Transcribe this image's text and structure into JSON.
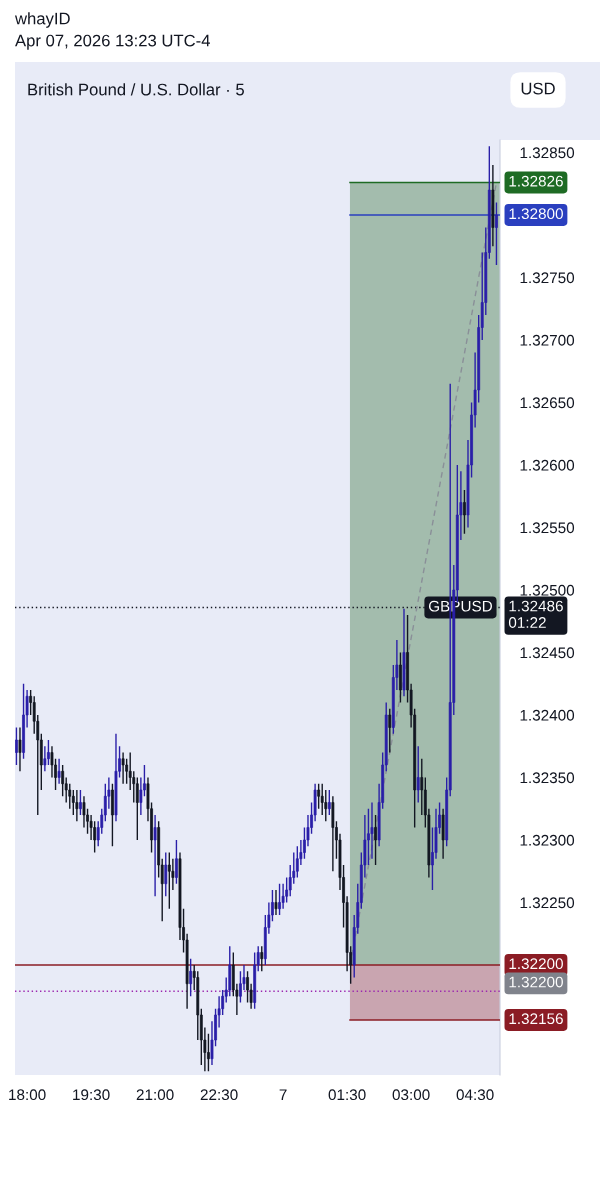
{
  "chart_data": {
    "type": "candlestick",
    "title": "British Pound / U.S. Dollar · 5",
    "subtitle": "Apr 07, 2026 13:23 UTC-4",
    "annotations": [
      "whayID",
      "USD",
      "GBPUSD",
      "1.32200"
    ],
    "colors": [
      "#2a1fa8",
      "#131722",
      "#2a1fa8",
      "#2a1fa8",
      "#131722",
      "#131722",
      "#131722",
      "#131722",
      "#2a1fa8",
      "#2a1fa8",
      "#131722",
      "#131722",
      "#2a1fa8",
      "#131722",
      "#131722",
      "#131722",
      "#131722",
      "#131722",
      "#2a1fa8",
      "#131722",
      "#131722",
      "#131722",
      "#131722",
      "#2a1fa8",
      "#2a1fa8",
      "#2a1fa8",
      "#2a1fa8",
      "#131722",
      "#2a1fa8",
      "#2a1fa8",
      "#131722",
      "#131722",
      "#131722",
      "#131722",
      "#131722",
      "#2a1fa8",
      "#2a1fa8",
      "#131722",
      "#131722",
      "#2a1fa8",
      "#131722",
      "#131722",
      "#2a1fa8",
      "#131722",
      "#131722",
      "#2a1fa8",
      "#131722",
      "#131722",
      "#131722",
      "#2a1fa8",
      "#131722",
      "#131722",
      "#131722",
      "#131722",
      "#131722",
      "#2a1fa8",
      "#2a1fa8",
      "#2a1fa8",
      "#2a1fa8",
      "#2a1fa8",
      "#2a1fa8",
      "#131722",
      "#131722",
      "#2a1fa8",
      "#2a1fa8",
      "#131722",
      "#131722",
      "#2a1fa8",
      "#2a1fa8",
      "#131722",
      "#2a1fa8",
      "#2a1fa8",
      "#2a1fa8",
      "#131722",
      "#2a1fa8",
      "#2a1fa8",
      "#2a1fa8",
      "#2a1fa8",
      "#2a1fa8",
      "#2a1fa8",
      "#2a1fa8",
      "#2a1fa8",
      "#2a1fa8",
      "#2a1fa8",
      "#2a1fa8",
      "#131722",
      "#131722",
      "#131722",
      "#2a1fa8",
      "#131722",
      "#131722",
      "#131722",
      "#131722",
      "#131722",
      "#131722",
      "#2a1fa8",
      "#2a1fa8",
      "#2a1fa8",
      "#2a1fa8",
      "#2a1fa8",
      "#2a1fa8",
      "#131722",
      "#2a1fa8",
      "#2a1fa8",
      "#2a1fa8",
      "#131722",
      "#2a1fa8",
      "#2a1fa8",
      "#131722",
      "#2a1fa8",
      "#131722",
      "#131722",
      "#131722",
      "#2a1fa8",
      "#131722",
      "#131722",
      "#131722",
      "#2a1fa8",
      "#2a1fa8",
      "#2a1fa8",
      "#131722",
      "#2a1fa8",
      "#2a1fa8",
      "#2a1fa8",
      "#2a1fa8",
      "#2a1fa8",
      "#131722",
      "#2a1fa8",
      "#2a1fa8",
      "#2a1fa8",
      "#2a1fa8",
      "#2a1fa8",
      "#2a1fa8",
      "#2a1fa8",
      "#131722",
      "#2a1fa8"
    ],
    "x": [
      "2026-04-06T17:45",
      "2026-04-06T17:50",
      "2026-04-06T17:55",
      "2026-04-06T18:00",
      "2026-04-06T18:05",
      "2026-04-06T18:10",
      "2026-04-06T18:15",
      "2026-04-06T18:20",
      "2026-04-06T18:25",
      "2026-04-06T18:30",
      "2026-04-06T18:35",
      "2026-04-06T18:40",
      "2026-04-06T18:45",
      "2026-04-06T18:50",
      "2026-04-06T18:55",
      "2026-04-06T19:00",
      "2026-04-06T19:05",
      "2026-04-06T19:10",
      "2026-04-06T19:15",
      "2026-04-06T19:20",
      "2026-04-06T19:25",
      "2026-04-06T19:30",
      "2026-04-06T19:35",
      "2026-04-06T19:40",
      "2026-04-06T19:45",
      "2026-04-06T19:50",
      "2026-04-06T19:55",
      "2026-04-06T20:00",
      "2026-04-06T20:05",
      "2026-04-06T20:10",
      "2026-04-06T20:15",
      "2026-04-06T20:20",
      "2026-04-06T20:25",
      "2026-04-06T20:30",
      "2026-04-06T20:35",
      "2026-04-06T20:40",
      "2026-04-06T20:45",
      "2026-04-06T20:50",
      "2026-04-06T20:55",
      "2026-04-06T21:00",
      "2026-04-06T21:05",
      "2026-04-06T21:10",
      "2026-04-06T21:15",
      "2026-04-06T21:20",
      "2026-04-06T21:25",
      "2026-04-06T21:30",
      "2026-04-06T21:35",
      "2026-04-06T21:40",
      "2026-04-06T21:45",
      "2026-04-06T21:50",
      "2026-04-06T21:55",
      "2026-04-06T22:00",
      "2026-04-06T22:05",
      "2026-04-06T22:10",
      "2026-04-06T22:15",
      "2026-04-06T22:20",
      "2026-04-06T22:25",
      "2026-04-06T22:30",
      "2026-04-06T22:35",
      "2026-04-06T22:40",
      "2026-04-06T22:45",
      "2026-04-06T22:50",
      "2026-04-06T22:55",
      "2026-04-06T23:00",
      "2026-04-06T23:05",
      "2026-04-06T23:10",
      "2026-04-06T23:15",
      "2026-04-06T23:20",
      "2026-04-06T23:25",
      "2026-04-06T23:30",
      "2026-04-06T23:35",
      "2026-04-06T23:40",
      "2026-04-06T23:45",
      "2026-04-06T23:50",
      "2026-04-06T23:55",
      "2026-04-07T00:00",
      "2026-04-07T00:05",
      "2026-04-07T00:10",
      "2026-04-07T00:15",
      "2026-04-07T00:20",
      "2026-04-07T00:25",
      "2026-04-07T00:30",
      "2026-04-07T00:35",
      "2026-04-07T00:40",
      "2026-04-07T00:45",
      "2026-04-07T00:50",
      "2026-04-07T00:55",
      "2026-04-07T01:00",
      "2026-04-07T01:05",
      "2026-04-07T01:10",
      "2026-04-07T01:15",
      "2026-04-07T01:20",
      "2026-04-07T01:25",
      "2026-04-07T01:30",
      "2026-04-07T01:35",
      "2026-04-07T01:40",
      "2026-04-07T01:45",
      "2026-04-07T01:50",
      "2026-04-07T01:55",
      "2026-04-07T02:00",
      "2026-04-07T02:05",
      "2026-04-07T02:10",
      "2026-04-07T02:15",
      "2026-04-07T02:20",
      "2026-04-07T02:25",
      "2026-04-07T02:30",
      "2026-04-07T02:35",
      "2026-04-07T02:40",
      "2026-04-07T02:45",
      "2026-04-07T02:50",
      "2026-04-07T02:55",
      "2026-04-07T03:00",
      "2026-04-07T03:05",
      "2026-04-07T03:10",
      "2026-04-07T03:15",
      "2026-04-07T03:20",
      "2026-04-07T03:25",
      "2026-04-07T03:30",
      "2026-04-07T03:35",
      "2026-04-07T03:40",
      "2026-04-07T03:45",
      "2026-04-07T03:50",
      "2026-04-07T03:55",
      "2026-04-07T04:00",
      "2026-04-07T04:05",
      "2026-04-07T04:10",
      "2026-04-07T04:15",
      "2026-04-07T04:20",
      "2026-04-07T04:25",
      "2026-04-07T04:30",
      "2026-04-07T04:35",
      "2026-04-07T04:40",
      "2026-04-07T04:45",
      "2026-04-07T04:50",
      "2026-04-07T04:55",
      "2026-04-07T05:00"
    ],
    "ohlc": [
      [
        1.3237,
        1.3239,
        1.3236,
        1.3238
      ],
      [
        1.3238,
        1.3239,
        1.32355,
        1.3237
      ],
      [
        1.3237,
        1.32425,
        1.32365,
        1.324
      ],
      [
        1.324,
        1.3242,
        1.3239,
        1.32415
      ],
      [
        1.32415,
        1.3242,
        1.324,
        1.3241
      ],
      [
        1.3241,
        1.32415,
        1.32385,
        1.32395
      ],
      [
        1.32395,
        1.324,
        1.3232,
        1.3238
      ],
      [
        1.3238,
        1.32385,
        1.3234,
        1.3236
      ],
      [
        1.3236,
        1.32375,
        1.32355,
        1.32365
      ],
      [
        1.32365,
        1.3238,
        1.3236,
        1.3237
      ],
      [
        1.3237,
        1.32375,
        1.3235,
        1.3236
      ],
      [
        1.3236,
        1.32365,
        1.3234,
        1.3235
      ],
      [
        1.3235,
        1.32365,
        1.32345,
        1.32355
      ],
      [
        1.32355,
        1.3236,
        1.32335,
        1.32345
      ],
      [
        1.32345,
        1.3235,
        1.3233,
        1.3234
      ],
      [
        1.3234,
        1.32345,
        1.32325,
        1.32335
      ],
      [
        1.32335,
        1.3234,
        1.3232,
        1.3233
      ],
      [
        1.3233,
        1.3234,
        1.32315,
        1.32325
      ],
      [
        1.32325,
        1.3234,
        1.3232,
        1.3233
      ],
      [
        1.3233,
        1.32335,
        1.3231,
        1.3232
      ],
      [
        1.3232,
        1.32325,
        1.32305,
        1.32315
      ],
      [
        1.32315,
        1.3232,
        1.323,
        1.3231
      ],
      [
        1.3231,
        1.32315,
        1.3229,
        1.323
      ],
      [
        1.323,
        1.32315,
        1.32295,
        1.3231
      ],
      [
        1.3231,
        1.32325,
        1.32305,
        1.3232
      ],
      [
        1.3232,
        1.32345,
        1.32315,
        1.32335
      ],
      [
        1.32335,
        1.3235,
        1.32325,
        1.3234
      ],
      [
        1.3234,
        1.32345,
        1.32295,
        1.3232
      ],
      [
        1.3232,
        1.32385,
        1.32315,
        1.32355
      ],
      [
        1.32355,
        1.32375,
        1.3235,
        1.32365
      ],
      [
        1.32365,
        1.3237,
        1.32345,
        1.3236
      ],
      [
        1.3236,
        1.32365,
        1.32345,
        1.32355
      ],
      [
        1.32355,
        1.3237,
        1.3234,
        1.3235
      ],
      [
        1.3235,
        1.32355,
        1.3233,
        1.32345
      ],
      [
        1.32345,
        1.3235,
        1.323,
        1.3233
      ],
      [
        1.3233,
        1.3235,
        1.3232,
        1.3234
      ],
      [
        1.3234,
        1.3236,
        1.32335,
        1.32345
      ],
      [
        1.32345,
        1.3235,
        1.32315,
        1.32325
      ],
      [
        1.32325,
        1.3233,
        1.3229,
        1.323
      ],
      [
        1.323,
        1.3232,
        1.32255,
        1.3231
      ],
      [
        1.3231,
        1.32315,
        1.3227,
        1.3228
      ],
      [
        1.3228,
        1.32285,
        1.32235,
        1.32265
      ],
      [
        1.32265,
        1.3229,
        1.32255,
        1.3228
      ],
      [
        1.3228,
        1.3229,
        1.32245,
        1.32275
      ],
      [
        1.32275,
        1.32285,
        1.3226,
        1.3227
      ],
      [
        1.3227,
        1.323,
        1.32265,
        1.32285
      ],
      [
        1.32285,
        1.3229,
        1.3222,
        1.3223
      ],
      [
        1.3223,
        1.32245,
        1.3221,
        1.3222
      ],
      [
        1.3222,
        1.32225,
        1.32165,
        1.32185
      ],
      [
        1.32185,
        1.32205,
        1.32175,
        1.32195
      ],
      [
        1.32195,
        1.322,
        1.3218,
        1.3219
      ],
      [
        1.3219,
        1.32195,
        1.3214,
        1.3216
      ],
      [
        1.3216,
        1.32165,
        1.3212,
        1.3214
      ],
      [
        1.3214,
        1.3215,
        1.32115,
        1.3213
      ],
      [
        1.3213,
        1.32145,
        1.32115,
        1.32125
      ],
      [
        1.32125,
        1.32155,
        1.3212,
        1.3214
      ],
      [
        1.3214,
        1.32165,
        1.32135,
        1.3216
      ],
      [
        1.3216,
        1.32175,
        1.3215,
        1.32165
      ],
      [
        1.32165,
        1.3218,
        1.3216,
        1.32175
      ],
      [
        1.32175,
        1.3219,
        1.3217,
        1.3218
      ],
      [
        1.3218,
        1.32215,
        1.32175,
        1.322
      ],
      [
        1.322,
        1.3221,
        1.32175,
        1.3218
      ],
      [
        1.3218,
        1.32185,
        1.3216,
        1.32175
      ],
      [
        1.32175,
        1.32195,
        1.3217,
        1.32185
      ],
      [
        1.32185,
        1.322,
        1.3218,
        1.3219
      ],
      [
        1.3219,
        1.32195,
        1.3217,
        1.3218
      ],
      [
        1.3218,
        1.32185,
        1.32165,
        1.3217
      ],
      [
        1.3217,
        1.3221,
        1.32165,
        1.322
      ],
      [
        1.322,
        1.32215,
        1.32195,
        1.3221
      ],
      [
        1.3221,
        1.32215,
        1.32195,
        1.32205
      ],
      [
        1.32205,
        1.3224,
        1.322,
        1.3223
      ],
      [
        1.3223,
        1.3225,
        1.32225,
        1.3224
      ],
      [
        1.3224,
        1.3226,
        1.32235,
        1.3225
      ],
      [
        1.3225,
        1.3226,
        1.3224,
        1.32245
      ],
      [
        1.32245,
        1.32265,
        1.3224,
        1.3225
      ],
      [
        1.3225,
        1.32265,
        1.32245,
        1.32255
      ],
      [
        1.32255,
        1.3227,
        1.3225,
        1.3226
      ],
      [
        1.3226,
        1.3228,
        1.32255,
        1.3227
      ],
      [
        1.3227,
        1.3229,
        1.32265,
        1.32275
      ],
      [
        1.32275,
        1.32295,
        1.3227,
        1.32285
      ],
      [
        1.32285,
        1.323,
        1.3228,
        1.3229
      ],
      [
        1.3229,
        1.3231,
        1.32285,
        1.323
      ],
      [
        1.323,
        1.3232,
        1.32295,
        1.3231
      ],
      [
        1.3231,
        1.3233,
        1.32305,
        1.3232
      ],
      [
        1.3232,
        1.32345,
        1.32315,
        1.3234
      ],
      [
        1.3234,
        1.32345,
        1.32325,
        1.32335
      ],
      [
        1.32335,
        1.32345,
        1.3232,
        1.3233
      ],
      [
        1.3233,
        1.3234,
        1.32315,
        1.32325
      ],
      [
        1.32325,
        1.3234,
        1.3232,
        1.3233
      ],
      [
        1.3233,
        1.32335,
        1.32275,
        1.3231
      ],
      [
        1.3231,
        1.32315,
        1.32285,
        1.323
      ],
      [
        1.323,
        1.32305,
        1.3226,
        1.3227
      ],
      [
        1.3227,
        1.3228,
        1.3223,
        1.3225
      ],
      [
        1.3225,
        1.32255,
        1.32195,
        1.3221
      ],
      [
        1.3221,
        1.32215,
        1.32185,
        1.322
      ],
      [
        1.322,
        1.3224,
        1.3219,
        1.3223
      ],
      [
        1.3223,
        1.32265,
        1.32225,
        1.3225
      ],
      [
        1.3225,
        1.3229,
        1.32245,
        1.3228
      ],
      [
        1.3228,
        1.3232,
        1.3227,
        1.323
      ],
      [
        1.323,
        1.32325,
        1.3228,
        1.32305
      ],
      [
        1.32305,
        1.3233,
        1.32285,
        1.3231
      ],
      [
        1.3231,
        1.3232,
        1.3228,
        1.323
      ],
      [
        1.323,
        1.32345,
        1.32295,
        1.3233
      ],
      [
        1.3233,
        1.3237,
        1.32325,
        1.3236
      ],
      [
        1.3236,
        1.3241,
        1.32355,
        1.324
      ],
      [
        1.324,
        1.32405,
        1.3237,
        1.3239
      ],
      [
        1.3239,
        1.3244,
        1.32385,
        1.3243
      ],
      [
        1.3243,
        1.3246,
        1.3242,
        1.3244
      ],
      [
        1.3244,
        1.3245,
        1.3241,
        1.3242
      ],
      [
        1.3242,
        1.32485,
        1.32415,
        1.3245
      ],
      [
        1.3245,
        1.3248,
        1.3241,
        1.3242
      ],
      [
        1.3242,
        1.32425,
        1.3239,
        1.324
      ],
      [
        1.324,
        1.32405,
        1.3231,
        1.3234
      ],
      [
        1.3234,
        1.32375,
        1.3233,
        1.3235
      ],
      [
        1.3235,
        1.32365,
        1.3232,
        1.3234
      ],
      [
        1.3234,
        1.3235,
        1.3231,
        1.3232
      ],
      [
        1.3232,
        1.32325,
        1.3227,
        1.3228
      ],
      [
        1.3228,
        1.3231,
        1.3226,
        1.3229
      ],
      [
        1.3229,
        1.32325,
        1.32285,
        1.3231
      ],
      [
        1.3231,
        1.3233,
        1.32305,
        1.3232
      ],
      [
        1.3232,
        1.32325,
        1.32285,
        1.323
      ],
      [
        1.323,
        1.3235,
        1.32295,
        1.3234
      ],
      [
        1.3234,
        1.32665,
        1.32335,
        1.3241
      ],
      [
        1.3241,
        1.3252,
        1.324,
        1.325
      ],
      [
        1.325,
        1.326,
        1.3249,
        1.3256
      ],
      [
        1.3256,
        1.32595,
        1.3254,
        1.3257
      ],
      [
        1.3257,
        1.3258,
        1.32545,
        1.3256
      ],
      [
        1.3256,
        1.3262,
        1.3255,
        1.326
      ],
      [
        1.326,
        1.3265,
        1.3259,
        1.3264
      ],
      [
        1.3264,
        1.3269,
        1.3263,
        1.3266
      ],
      [
        1.3266,
        1.3272,
        1.3265,
        1.3271
      ],
      [
        1.3271,
        1.3277,
        1.327,
        1.3273
      ],
      [
        1.3273,
        1.3279,
        1.3272,
        1.3277
      ],
      [
        1.3277,
        1.32855,
        1.32765,
        1.3282
      ],
      [
        1.3282,
        1.3284,
        1.32775,
        1.3279
      ],
      [
        1.3279,
        1.3281,
        1.3276,
        1.328
      ]
    ],
    "series": [
      {
        "type": "line",
        "x": [
          "2026-04-07T01:34",
          "2026-04-07T05:00"
        ],
        "values": [
          1.322,
          1.32826
        ],
        "color": "#8a8f98",
        "line_style": "dashed"
      }
    ],
    "bands": [
      {
        "axis": "y",
        "from": 1.322,
        "to": 1.32826,
        "color": "#a3bcad"
      },
      {
        "axis": "y",
        "from": 1.32156,
        "to": 1.322,
        "color": "#c9a5b0"
      }
    ],
    "ref_lines": [
      {
        "axis": "y",
        "value": 1.32826,
        "label": "1.32826",
        "color": "#1e6b24"
      },
      {
        "axis": "y",
        "value": 1.328,
        "label": "1.32800",
        "color": "#2a3fbf"
      },
      {
        "axis": "y",
        "value": 1.32486,
        "label": "1.32486\n01:22",
        "color": "#131722",
        "line_style": "dotted"
      },
      {
        "axis": "y",
        "value": 1.322,
        "label": "1.32200",
        "color": "#8b1c24",
        "line_style": "solid"
      },
      {
        "axis": "y",
        "value": 1.32156,
        "label": "1.32156",
        "color": "#8b1c24"
      },
      {
        "axis": "y",
        "value": 1.32179,
        "color": "#9c27b0",
        "line_style": "dotted"
      }
    ],
    "xlim": [
      "2026-04-06T17:43",
      "2026-04-07T05:05"
    ],
    "xticks": [
      {
        "value": "2026-04-06T18:00",
        "label": "18:00"
      },
      {
        "value": "2026-04-06T19:30",
        "label": "19:30"
      },
      {
        "value": "2026-04-06T21:00",
        "label": "21:00"
      },
      {
        "value": "2026-04-06T22:30",
        "label": "22:30"
      },
      {
        "value": "2026-04-07T00:00",
        "label": "7"
      },
      {
        "value": "2026-04-07T01:30",
        "label": "01:30"
      },
      {
        "value": "2026-04-07T03:00",
        "label": "03:00"
      },
      {
        "value": "2026-04-07T04:30",
        "label": "04:30"
      }
    ],
    "ylim": [
      1.32112,
      1.3286
    ],
    "yticks": [
      {
        "value": 1.3225,
        "label": "1.32250"
      },
      {
        "value": 1.323,
        "label": "1.32300"
      },
      {
        "value": 1.3235,
        "label": "1.32350"
      },
      {
        "value": 1.324,
        "label": "1.32400"
      },
      {
        "value": 1.3245,
        "label": "1.32450"
      },
      {
        "value": 1.325,
        "label": "1.32500"
      },
      {
        "value": 1.3255,
        "label": "1.32550"
      },
      {
        "value": 1.326,
        "label": "1.32600"
      },
      {
        "value": 1.3265,
        "label": "1.32650"
      },
      {
        "value": 1.327,
        "label": "1.32700"
      },
      {
        "value": 1.3275,
        "label": "1.32750"
      },
      {
        "value": 1.3285,
        "label": "1.32850"
      }
    ],
    "grid": false
  }
}
